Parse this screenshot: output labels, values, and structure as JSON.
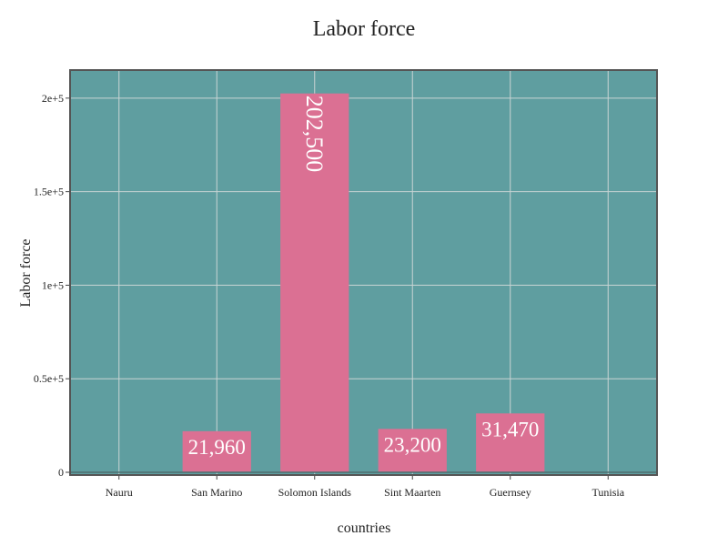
{
  "chart_data": {
    "type": "bar",
    "title": "Labor force",
    "xlabel": "countries",
    "ylabel": "Labor force",
    "categories": [
      "Nauru",
      "San Marino",
      "Solomon Islands",
      "Sint Maarten",
      "Guernsey",
      "Tunisia"
    ],
    "values": [
      null,
      21960,
      202500,
      23200,
      31470,
      null
    ],
    "data_labels": [
      "",
      "21,960",
      "202,500",
      "23,200",
      "31,470",
      ""
    ],
    "ylim": [
      0,
      215000
    ],
    "yticks": [
      0,
      50000,
      100000,
      150000,
      200000
    ],
    "ytick_labels": [
      "0",
      "0.5e+5",
      "1e+5",
      "1.5e+5",
      "2e+5"
    ],
    "grid": true,
    "colors": {
      "plot_background": "#5f9ea0",
      "bar": "#db7093",
      "frame": "#555555"
    }
  }
}
